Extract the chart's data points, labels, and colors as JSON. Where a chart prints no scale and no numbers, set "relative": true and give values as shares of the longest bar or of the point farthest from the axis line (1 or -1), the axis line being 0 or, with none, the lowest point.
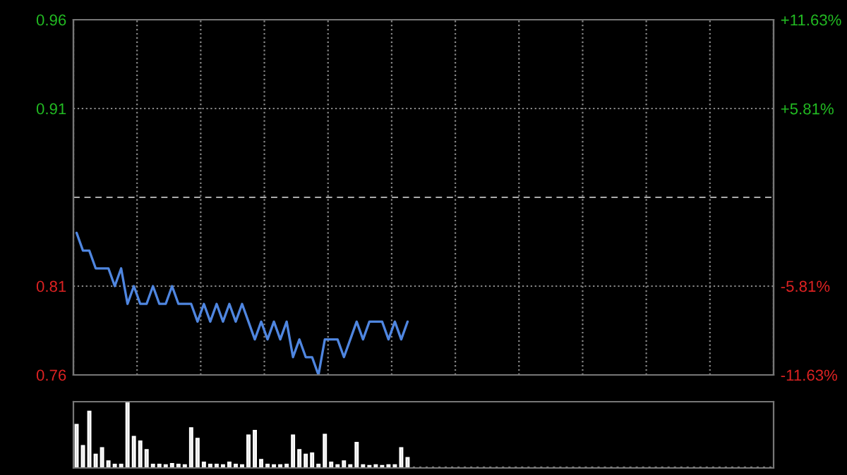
{
  "chart_data": [
    {
      "type": "line",
      "categories": [
        null,
        null,
        null,
        null,
        null,
        null,
        null,
        null,
        null,
        null,
        null,
        null,
        null,
        null,
        null,
        null,
        null,
        null,
        null,
        null,
        null,
        null,
        null,
        null,
        null,
        null,
        null,
        null,
        null,
        null,
        null,
        null,
        null,
        null,
        null,
        null,
        null,
        null,
        null,
        null,
        null,
        null,
        null,
        null,
        null,
        null,
        null,
        null,
        null,
        null,
        null,
        null,
        null,
        null,
        null,
        null,
        null,
        null,
        null,
        null,
        null,
        null,
        null,
        null,
        null,
        null,
        null,
        null,
        null,
        null,
        null,
        null,
        null,
        null,
        null,
        null,
        null,
        null,
        null,
        null,
        null,
        null,
        null,
        null,
        null,
        null,
        null,
        null,
        null,
        null,
        null,
        null,
        null,
        null,
        null,
        null,
        null,
        null,
        null,
        null,
        null,
        null,
        null,
        null,
        null,
        null,
        null,
        null,
        null,
        null
      ],
      "series": [
        {
          "color": "#4f86e0",
          "values": [
            0.84,
            0.83,
            0.83,
            0.82,
            0.82,
            0.82,
            0.81,
            0.82,
            0.8,
            0.81,
            0.8,
            0.8,
            0.81,
            0.8,
            0.8,
            0.81,
            0.8,
            0.8,
            0.8,
            0.79,
            0.8,
            0.79,
            0.8,
            0.79,
            0.8,
            0.79,
            0.8,
            0.79,
            0.78,
            0.79,
            0.78,
            0.79,
            0.78,
            0.79,
            0.77,
            0.78,
            0.77,
            0.77,
            0.76,
            0.78,
            0.78,
            0.78,
            0.77,
            0.78,
            0.79,
            0.78,
            0.79,
            0.79,
            0.79,
            0.78,
            0.79,
            0.78,
            0.79,
            null,
            null,
            null,
            null,
            null,
            null,
            null,
            null,
            null,
            null,
            null,
            null,
            null,
            null,
            null,
            null,
            null,
            null,
            null,
            null,
            null,
            null,
            null,
            null,
            null,
            null,
            null,
            null,
            null,
            null,
            null,
            null,
            null,
            null,
            null,
            null,
            null,
            null,
            null,
            null,
            null,
            null,
            null,
            null,
            null,
            null,
            null,
            null,
            null,
            null,
            null,
            null,
            null,
            null,
            null,
            null,
            null
          ]
        }
      ],
      "ylim": [
        0.76,
        0.96
      ],
      "yticks": [
        0.76,
        0.81,
        0.91,
        0.96
      ],
      "y2lim": [
        -11.63,
        11.63
      ],
      "y2ticks": [
        {
          "value": -11.63,
          "label": "-11.63%"
        },
        {
          "value": -5.81,
          "label": "-5.81%"
        },
        {
          "value": 5.81,
          "label": "+5.81%"
        },
        {
          "value": 11.63,
          "label": "+11.63%"
        }
      ],
      "ref_lines": [
        {
          "axis": "y",
          "value": 0.86,
          "color": "#aaaaaa",
          "line_style": "dashed"
        }
      ],
      "grid": true,
      "tick_labels": "y"
    },
    {
      "type": "bar",
      "relative": true,
      "tick_labels": false,
      "categories": [
        null,
        null,
        null,
        null,
        null,
        null,
        null,
        null,
        null,
        null,
        null,
        null,
        null,
        null,
        null,
        null,
        null,
        null,
        null,
        null,
        null,
        null,
        null,
        null,
        null,
        null,
        null,
        null,
        null,
        null,
        null,
        null,
        null,
        null,
        null,
        null,
        null,
        null,
        null,
        null,
        null,
        null,
        null,
        null,
        null,
        null,
        null,
        null,
        null,
        null,
        null,
        null,
        null,
        null,
        null,
        null,
        null,
        null,
        null,
        null,
        null,
        null,
        null,
        null,
        null,
        null,
        null,
        null,
        null,
        null,
        null,
        null,
        null,
        null,
        null,
        null,
        null,
        null,
        null,
        null,
        null,
        null,
        null,
        null,
        null,
        null,
        null,
        null,
        null,
        null,
        null,
        null,
        null,
        null,
        null,
        null,
        null,
        null,
        null,
        null,
        null,
        null,
        null,
        null,
        null,
        null,
        null,
        null,
        null,
        null
      ],
      "series": [
        {
          "color": "#8c8c8c",
          "values": [
            0.65,
            0.33,
            0.85,
            0.2,
            0.3,
            0.1,
            0.05,
            0.05,
            1.0,
            0.47,
            0.4,
            0.27,
            0.05,
            0.05,
            0.04,
            0.06,
            0.05,
            0.04,
            0.6,
            0.44,
            0.08,
            0.05,
            0.05,
            0.04,
            0.08,
            0.05,
            0.04,
            0.49,
            0.56,
            0.12,
            0.05,
            0.04,
            0.04,
            0.05,
            0.49,
            0.27,
            0.2,
            0.22,
            0.05,
            0.5,
            0.08,
            0.04,
            0.1,
            0.04,
            0.38,
            0.04,
            0.03,
            0.04,
            0.03,
            0.04,
            0.04,
            0.3,
            0.15,
            null,
            null,
            null,
            null,
            null,
            null,
            null,
            null,
            null,
            null,
            null,
            null,
            null,
            null,
            null,
            null,
            null,
            null,
            null,
            null,
            null,
            null,
            null,
            null,
            null,
            null,
            null,
            null,
            null,
            null,
            null,
            null,
            null,
            null,
            null,
            null,
            null,
            null,
            null,
            null,
            null,
            null,
            null,
            null,
            null,
            null,
            null,
            null,
            null,
            null,
            null,
            null,
            null,
            null,
            null,
            null,
            null
          ]
        }
      ]
    }
  ]
}
